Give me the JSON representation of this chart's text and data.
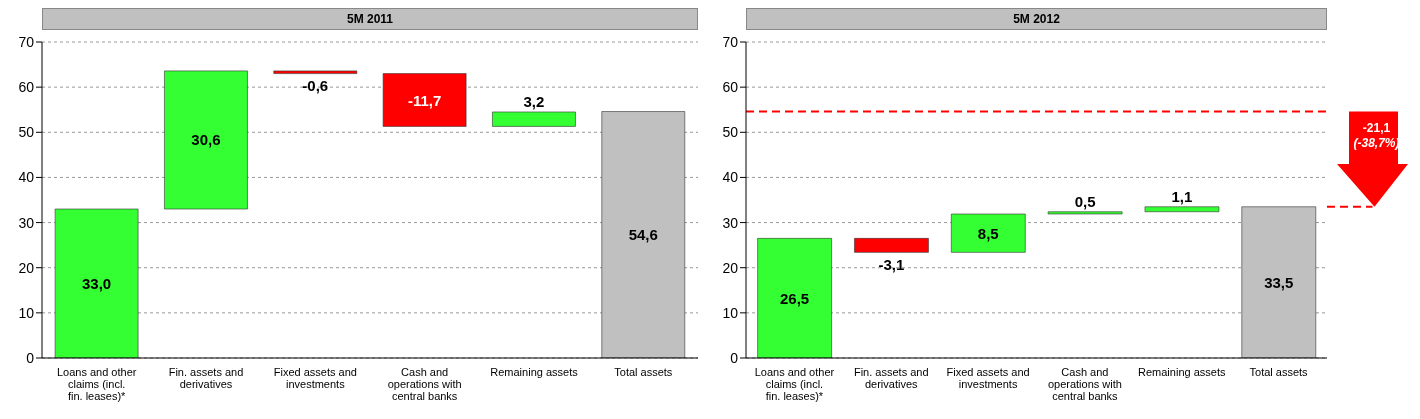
{
  "chart_data": [
    {
      "type": "bar",
      "title": "5M 2011",
      "categories": [
        "Loans and other claims (incl. fin. leases)*",
        "Fin. assets and derivatives",
        "Fixed assets and investments",
        "Cash and operations with central banks",
        "Remaining assets",
        "Total assets"
      ],
      "values": [
        33.0,
        30.6,
        -0.6,
        -11.7,
        3.2,
        54.6
      ],
      "base": [
        0,
        33.0,
        63.6,
        63.0,
        51.3,
        0
      ],
      "colors": [
        "#33ff33",
        "#33ff33",
        "#ff0000",
        "#ff0000",
        "#33ff33",
        "#c0c0c0"
      ],
      "value_labels": [
        "33,0",
        "30,6",
        "-0,6",
        "-11,7",
        "3,2",
        "54,6"
      ],
      "ylim": [
        0,
        70
      ],
      "yticks": [
        0,
        10,
        20,
        30,
        40,
        50,
        60,
        70
      ],
      "grid": "y"
    },
    {
      "type": "bar",
      "title": "5M 2012",
      "categories": [
        "Loans and other claims (incl. fin. leases)*",
        "Fin. assets and derivatives",
        "Fixed assets and investments",
        "Cash and operations with central banks",
        "Remaining assets",
        "Total assets"
      ],
      "values": [
        26.5,
        -3.1,
        8.5,
        0.5,
        1.1,
        33.5
      ],
      "base": [
        0,
        26.5,
        23.4,
        31.9,
        32.4,
        0
      ],
      "colors": [
        "#33ff33",
        "#ff0000",
        "#33ff33",
        "#33ff33",
        "#33ff33",
        "#c0c0c0"
      ],
      "value_labels": [
        "26,5",
        "-3,1",
        "8,5",
        "0,5",
        "1,1",
        "33,5"
      ],
      "ylim": [
        0,
        70
      ],
      "yticks": [
        0,
        10,
        20,
        30,
        40,
        50,
        60,
        70
      ],
      "grid": "y",
      "ref_lines": [
        {
          "axis": "y",
          "value": 54.6,
          "color": "#ff0000",
          "line_style": "dashed"
        }
      ],
      "annotations": [
        "-21,1 (-38,7%)"
      ]
    }
  ]
}
